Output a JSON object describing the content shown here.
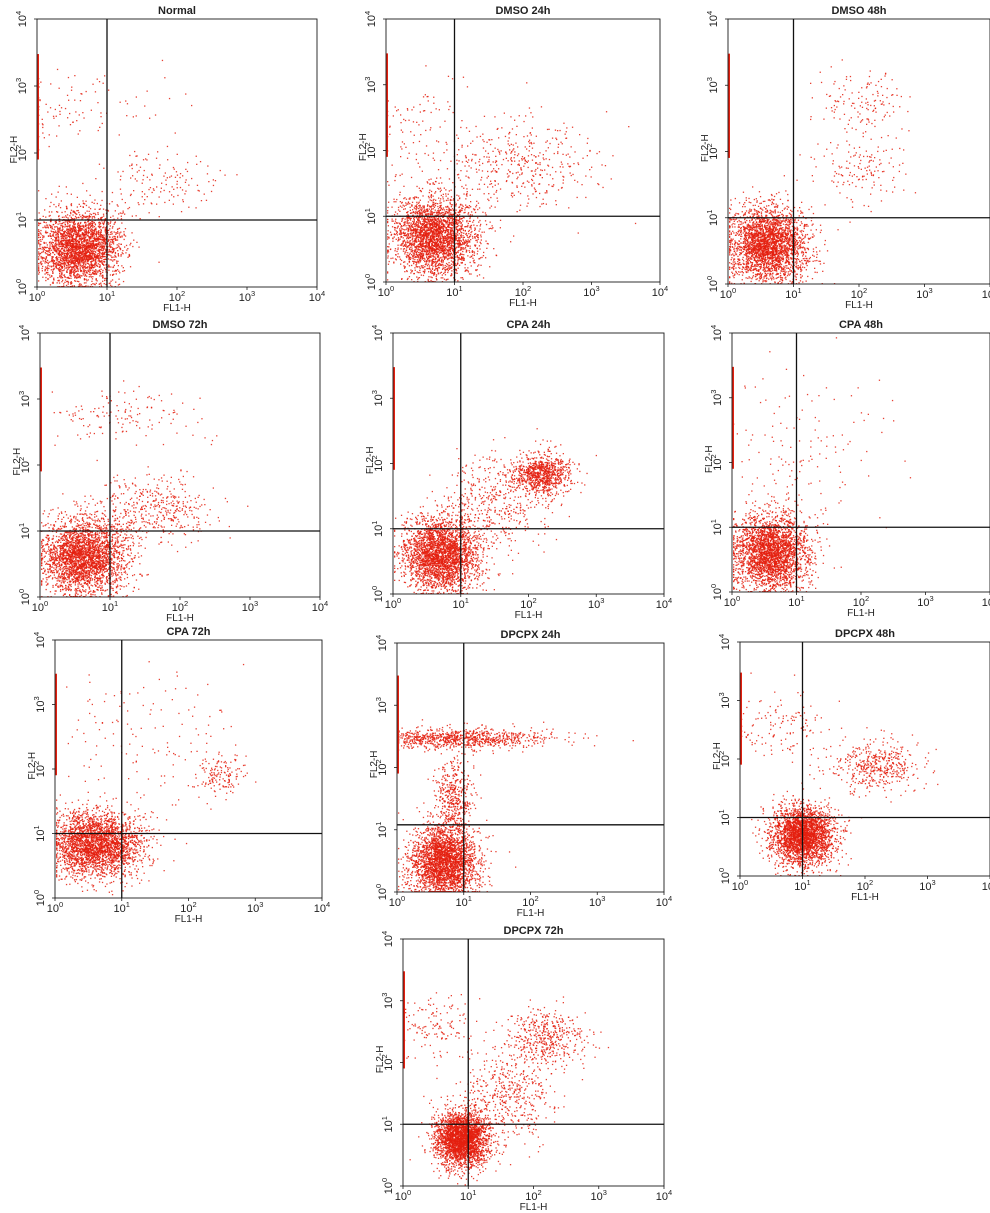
{
  "figure": {
    "colors": {
      "dots": "#e4200f",
      "frame": "#1a1a1a",
      "gate": "#111111",
      "text": "#222222"
    },
    "tick_labels": [
      "10^0",
      "10^1",
      "10^2",
      "10^3",
      "10^4"
    ]
  },
  "chart_data": [
    {
      "type": "scatter",
      "title": "Normal",
      "xlabel": "FL1-H",
      "ylabel": "FL2-H",
      "x_scale": "log",
      "y_scale": "log",
      "xlim": [
        1,
        10000
      ],
      "ylim": [
        1,
        10000
      ],
      "quadrant_gate": {
        "x": 10,
        "y": 10
      },
      "populations": [
        {
          "center": [
            4,
            4
          ],
          "spread": [
            0.3,
            0.28
          ],
          "density": "very high"
        },
        {
          "center": [
            1.5,
            500
          ],
          "spread": [
            0.7,
            0.3
          ],
          "density": "sparse"
        },
        {
          "center": [
            60,
            40
          ],
          "spread": [
            0.4,
            0.25
          ],
          "density": "sparse"
        }
      ]
    },
    {
      "type": "scatter",
      "title": "DMSO 24h",
      "xlabel": "FL1-H",
      "ylabel": "FL2-H",
      "x_scale": "log",
      "y_scale": "log",
      "xlim": [
        1,
        10000
      ],
      "ylim": [
        1,
        10000
      ],
      "quadrant_gate": {
        "x": 10,
        "y": 10
      },
      "populations": [
        {
          "center": [
            5,
            5
          ],
          "spread": [
            0.3,
            0.3
          ],
          "density": "very high"
        },
        {
          "center": [
            80,
            60
          ],
          "spread": [
            0.6,
            0.35
          ],
          "density": "medium"
        },
        {
          "center": [
            1.5,
            200
          ],
          "spread": [
            0.5,
            0.45
          ],
          "density": "sparse"
        }
      ]
    },
    {
      "type": "scatter",
      "title": "DMSO 48h",
      "xlabel": "FL1-H",
      "ylabel": "FL2-H",
      "x_scale": "log",
      "y_scale": "log",
      "xlim": [
        1,
        10000
      ],
      "ylim": [
        1,
        10000
      ],
      "quadrant_gate": {
        "x": 10,
        "y": 10
      },
      "populations": [
        {
          "center": [
            4,
            4
          ],
          "spread": [
            0.3,
            0.28
          ],
          "density": "very high"
        },
        {
          "center": [
            100,
            600
          ],
          "spread": [
            0.35,
            0.25
          ],
          "density": "sparse"
        },
        {
          "center": [
            100,
            50
          ],
          "spread": [
            0.35,
            0.25
          ],
          "density": "sparse"
        }
      ]
    },
    {
      "type": "scatter",
      "title": "DMSO 72h",
      "xlabel": "FL1-H",
      "ylabel": "FL2-H",
      "x_scale": "log",
      "y_scale": "log",
      "xlim": [
        1,
        10000
      ],
      "ylim": [
        1,
        10000
      ],
      "quadrant_gate": {
        "x": 10,
        "y": 10
      },
      "populations": [
        {
          "center": [
            4,
            4
          ],
          "spread": [
            0.3,
            0.28
          ],
          "density": "very high"
        },
        {
          "center": [
            40,
            20
          ],
          "spread": [
            0.45,
            0.25
          ],
          "density": "medium"
        },
        {
          "center": [
            15,
            600
          ],
          "spread": [
            0.6,
            0.2
          ],
          "density": "sparse"
        }
      ]
    },
    {
      "type": "scatter",
      "title": "CPA 24h",
      "xlabel": "FL1-H",
      "ylabel": "FL2-H",
      "x_scale": "log",
      "y_scale": "log",
      "xlim": [
        1,
        10000
      ],
      "ylim": [
        1,
        10000
      ],
      "quadrant_gate": {
        "x": 10,
        "y": 10
      },
      "populations": [
        {
          "center": [
            5,
            4
          ],
          "spread": [
            0.28,
            0.28
          ],
          "density": "very high"
        },
        {
          "center": [
            150,
            70
          ],
          "spread": [
            0.22,
            0.15
          ],
          "density": "high"
        },
        {
          "center": [
            30,
            25
          ],
          "spread": [
            0.4,
            0.35
          ],
          "density": "medium"
        }
      ]
    },
    {
      "type": "scatter",
      "title": "CPA 48h",
      "xlabel": "FL1-H",
      "ylabel": "FL2-H",
      "x_scale": "log",
      "y_scale": "log",
      "xlim": [
        1,
        10000
      ],
      "ylim": [
        1,
        10000
      ],
      "quadrant_gate": {
        "x": 10,
        "y": 10
      },
      "populations": [
        {
          "center": [
            4,
            4
          ],
          "spread": [
            0.3,
            0.3
          ],
          "density": "very high"
        },
        {
          "center": [
            10,
            150
          ],
          "spread": [
            0.7,
            0.6
          ],
          "density": "sparse"
        }
      ]
    },
    {
      "type": "scatter",
      "title": "CPA 72h",
      "xlabel": "FL1-H",
      "ylabel": "FL2-H",
      "x_scale": "log",
      "y_scale": "log",
      "xlim": [
        1,
        10000
      ],
      "ylim": [
        1,
        10000
      ],
      "quadrant_gate": {
        "x": 10,
        "y": 10
      },
      "populations": [
        {
          "center": [
            4,
            7
          ],
          "spread": [
            0.35,
            0.25
          ],
          "density": "very high"
        },
        {
          "center": [
            300,
            80
          ],
          "spread": [
            0.2,
            0.15
          ],
          "density": "sparse"
        },
        {
          "center": [
            20,
            300
          ],
          "spread": [
            0.7,
            0.5
          ],
          "density": "sparse"
        }
      ]
    },
    {
      "type": "scatter",
      "title": "DPCPX 24h",
      "xlabel": "FL1-H",
      "ylabel": "FL2-H",
      "x_scale": "log",
      "y_scale": "log",
      "xlim": [
        1,
        10000
      ],
      "ylim": [
        1,
        10000
      ],
      "quadrant_gate": {
        "x": 10,
        "y": 12
      },
      "populations": [
        {
          "center": [
            5,
            3
          ],
          "spread": [
            0.25,
            0.3
          ],
          "density": "very high"
        },
        {
          "center": [
            8,
            300
          ],
          "spread": [
            0.7,
            0.08
          ],
          "density": "high"
        },
        {
          "center": [
            7,
            30
          ],
          "spread": [
            0.15,
            0.35
          ],
          "density": "medium"
        }
      ]
    },
    {
      "type": "scatter",
      "title": "DPCPX 48h",
      "xlabel": "FL1-H",
      "ylabel": "FL2-H",
      "x_scale": "log",
      "y_scale": "log",
      "xlim": [
        1,
        10000
      ],
      "ylim": [
        1,
        10000
      ],
      "quadrant_gate": {
        "x": 10,
        "y": 10
      },
      "populations": [
        {
          "center": [
            10,
            5
          ],
          "spread": [
            0.25,
            0.25
          ],
          "density": "very high"
        },
        {
          "center": [
            150,
            80
          ],
          "spread": [
            0.35,
            0.22
          ],
          "density": "medium"
        },
        {
          "center": [
            5,
            400
          ],
          "spread": [
            0.4,
            0.3
          ],
          "density": "sparse"
        }
      ]
    },
    {
      "type": "scatter",
      "title": "DPCPX 72h",
      "xlabel": "FL1-H",
      "ylabel": "FL2-H",
      "x_scale": "log",
      "y_scale": "log",
      "xlim": [
        1,
        10000
      ],
      "ylim": [
        1,
        10000
      ],
      "quadrant_gate": {
        "x": 10,
        "y": 10
      },
      "populations": [
        {
          "center": [
            8,
            6
          ],
          "spread": [
            0.2,
            0.22
          ],
          "density": "very high"
        },
        {
          "center": [
            150,
            250
          ],
          "spread": [
            0.3,
            0.22
          ],
          "density": "medium"
        },
        {
          "center": [
            40,
            30
          ],
          "spread": [
            0.35,
            0.35
          ],
          "density": "medium"
        },
        {
          "center": [
            3,
            400
          ],
          "spread": [
            0.4,
            0.25
          ],
          "density": "sparse"
        }
      ]
    }
  ]
}
